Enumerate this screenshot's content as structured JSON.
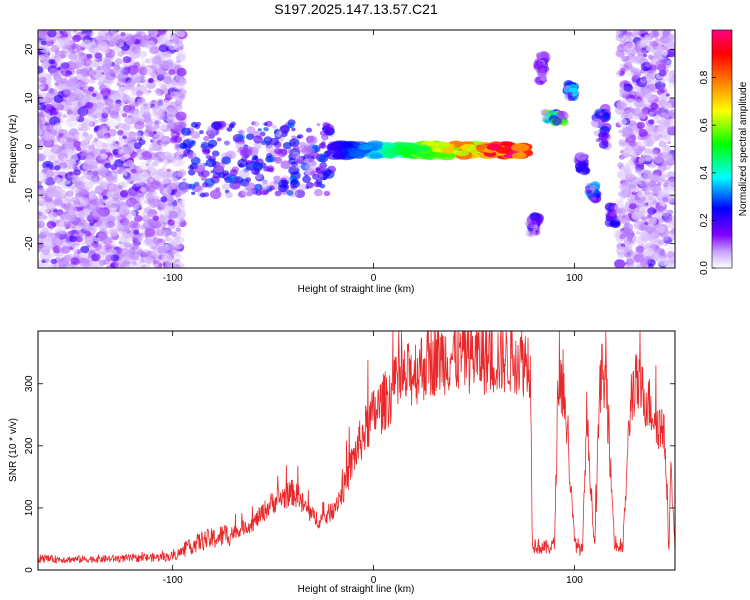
{
  "title": "S197.2025.147.13.57.C21",
  "chart_data": [
    {
      "type": "heatmap",
      "xlabel": "Height of straight line (km)",
      "ylabel": "Frequency (Hz)",
      "xlim": [
        -167,
        150
      ],
      "ylim": [
        -25,
        24
      ],
      "x_ticks": [
        -100,
        0,
        100
      ],
      "x_tick_labels": [
        "-100",
        "0",
        "100"
      ],
      "y_ticks": [
        -20,
        -10,
        0,
        10,
        20
      ],
      "y_tick_labels": [
        "-20",
        "-10",
        "0",
        "10",
        "20"
      ],
      "colorbar": {
        "label": "Normalized spectral amplitude",
        "range": [
          0,
          1
        ],
        "ticks": [
          0.0,
          0.2,
          0.4,
          0.6,
          0.8
        ],
        "tick_labels": [
          "0.0",
          "0.2",
          "0.4",
          "0.6",
          "0.8"
        ],
        "colors": [
          "#ffffff",
          "#8000ff",
          "#0000ff",
          "#00ffff",
          "#00ff00",
          "#ffff00",
          "#ff8000",
          "#ff0000",
          "#ff0080"
        ]
      },
      "regions": [
        {
          "x": [
            -167,
            -95
          ],
          "y": [
            -25,
            24
          ],
          "amplitude": 0.15,
          "kind": "noise"
        },
        {
          "x": [
            -95,
            -20
          ],
          "y": [
            -10,
            5
          ],
          "amplitude": 0.25,
          "kind": "scattered"
        },
        {
          "x": [
            -20,
            75
          ],
          "y": [
            -2,
            0.5
          ],
          "amplitude": 0.85,
          "kind": "band"
        },
        {
          "x": [
            78,
            82
          ],
          "y": [
            -18,
            -14
          ],
          "amplitude": 0.2,
          "kind": "blob"
        },
        {
          "x": [
            82,
            86
          ],
          "y": [
            13,
            19
          ],
          "amplitude": 0.15,
          "kind": "blob"
        },
        {
          "x": [
            85,
            95
          ],
          "y": [
            5,
            7
          ],
          "amplitude": 0.55,
          "kind": "blob"
        },
        {
          "x": [
            96,
            100
          ],
          "y": [
            10,
            13
          ],
          "amplitude": 0.35,
          "kind": "blob"
        },
        {
          "x": [
            102,
            106
          ],
          "y": [
            -5,
            -2
          ],
          "amplitude": 0.2,
          "kind": "blob"
        },
        {
          "x": [
            107,
            111
          ],
          "y": [
            -11,
            -8
          ],
          "amplitude": 0.3,
          "kind": "blob"
        },
        {
          "x": [
            111,
            116
          ],
          "y": [
            0,
            8
          ],
          "amplitude": 0.25,
          "kind": "blob"
        },
        {
          "x": [
            117,
            121
          ],
          "y": [
            -16,
            -12
          ],
          "amplitude": 0.2,
          "kind": "blob"
        },
        {
          "x": [
            122,
            150
          ],
          "y": [
            -25,
            24
          ],
          "amplitude": 0.1,
          "kind": "noise"
        }
      ]
    },
    {
      "type": "line",
      "xlabel": "Height of straight line (km)",
      "ylabel": "SNR (10 * v/v)",
      "xlim": [
        -167,
        150
      ],
      "ylim": [
        0,
        385
      ],
      "x_ticks": [
        -100,
        0,
        100
      ],
      "x_tick_labels": [
        "-100",
        "0",
        "100"
      ],
      "y_ticks": [
        0,
        100,
        200,
        300
      ],
      "y_tick_labels": [
        "0",
        "100",
        "200",
        "300"
      ],
      "series": [
        {
          "color": "#e8282a",
          "x": [
            -167,
            -150,
            -130,
            -110,
            -100,
            -95,
            -90,
            -85,
            -80,
            -70,
            -60,
            -50,
            -40,
            -30,
            -25,
            -20,
            -15,
            -10,
            -5,
            0,
            5,
            10,
            20,
            30,
            40,
            50,
            60,
            70,
            78,
            79,
            80,
            85,
            90,
            92,
            95,
            100,
            104,
            106,
            110,
            113,
            116,
            120,
            124,
            128,
            130,
            135,
            140,
            145,
            147,
            148,
            150
          ],
          "values": [
            18,
            17,
            18,
            20,
            22,
            30,
            40,
            48,
            50,
            60,
            75,
            110,
            125,
            85,
            80,
            100,
            130,
            180,
            220,
            250,
            270,
            290,
            320,
            340,
            345,
            345,
            340,
            345,
            335,
            50,
            40,
            35,
            40,
            320,
            280,
            45,
            30,
            250,
            35,
            320,
            280,
            40,
            35,
            280,
            300,
            280,
            250,
            210,
            30,
            170,
            30
          ]
        }
      ]
    }
  ]
}
